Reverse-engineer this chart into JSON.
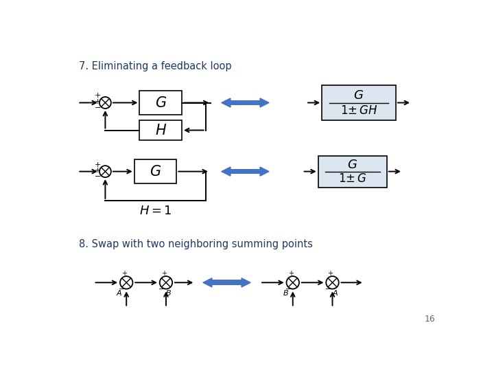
{
  "title1": "7. Eliminating a feedback loop",
  "title2": "8. Swap with two neighboring summing points",
  "page_num": "16",
  "bg_color": "#ffffff",
  "title_color": "#1F3864",
  "box_fill": "#dce6f1",
  "box_edge": "#000000",
  "arrow_color": "#4472c4",
  "line_color": "#000000"
}
